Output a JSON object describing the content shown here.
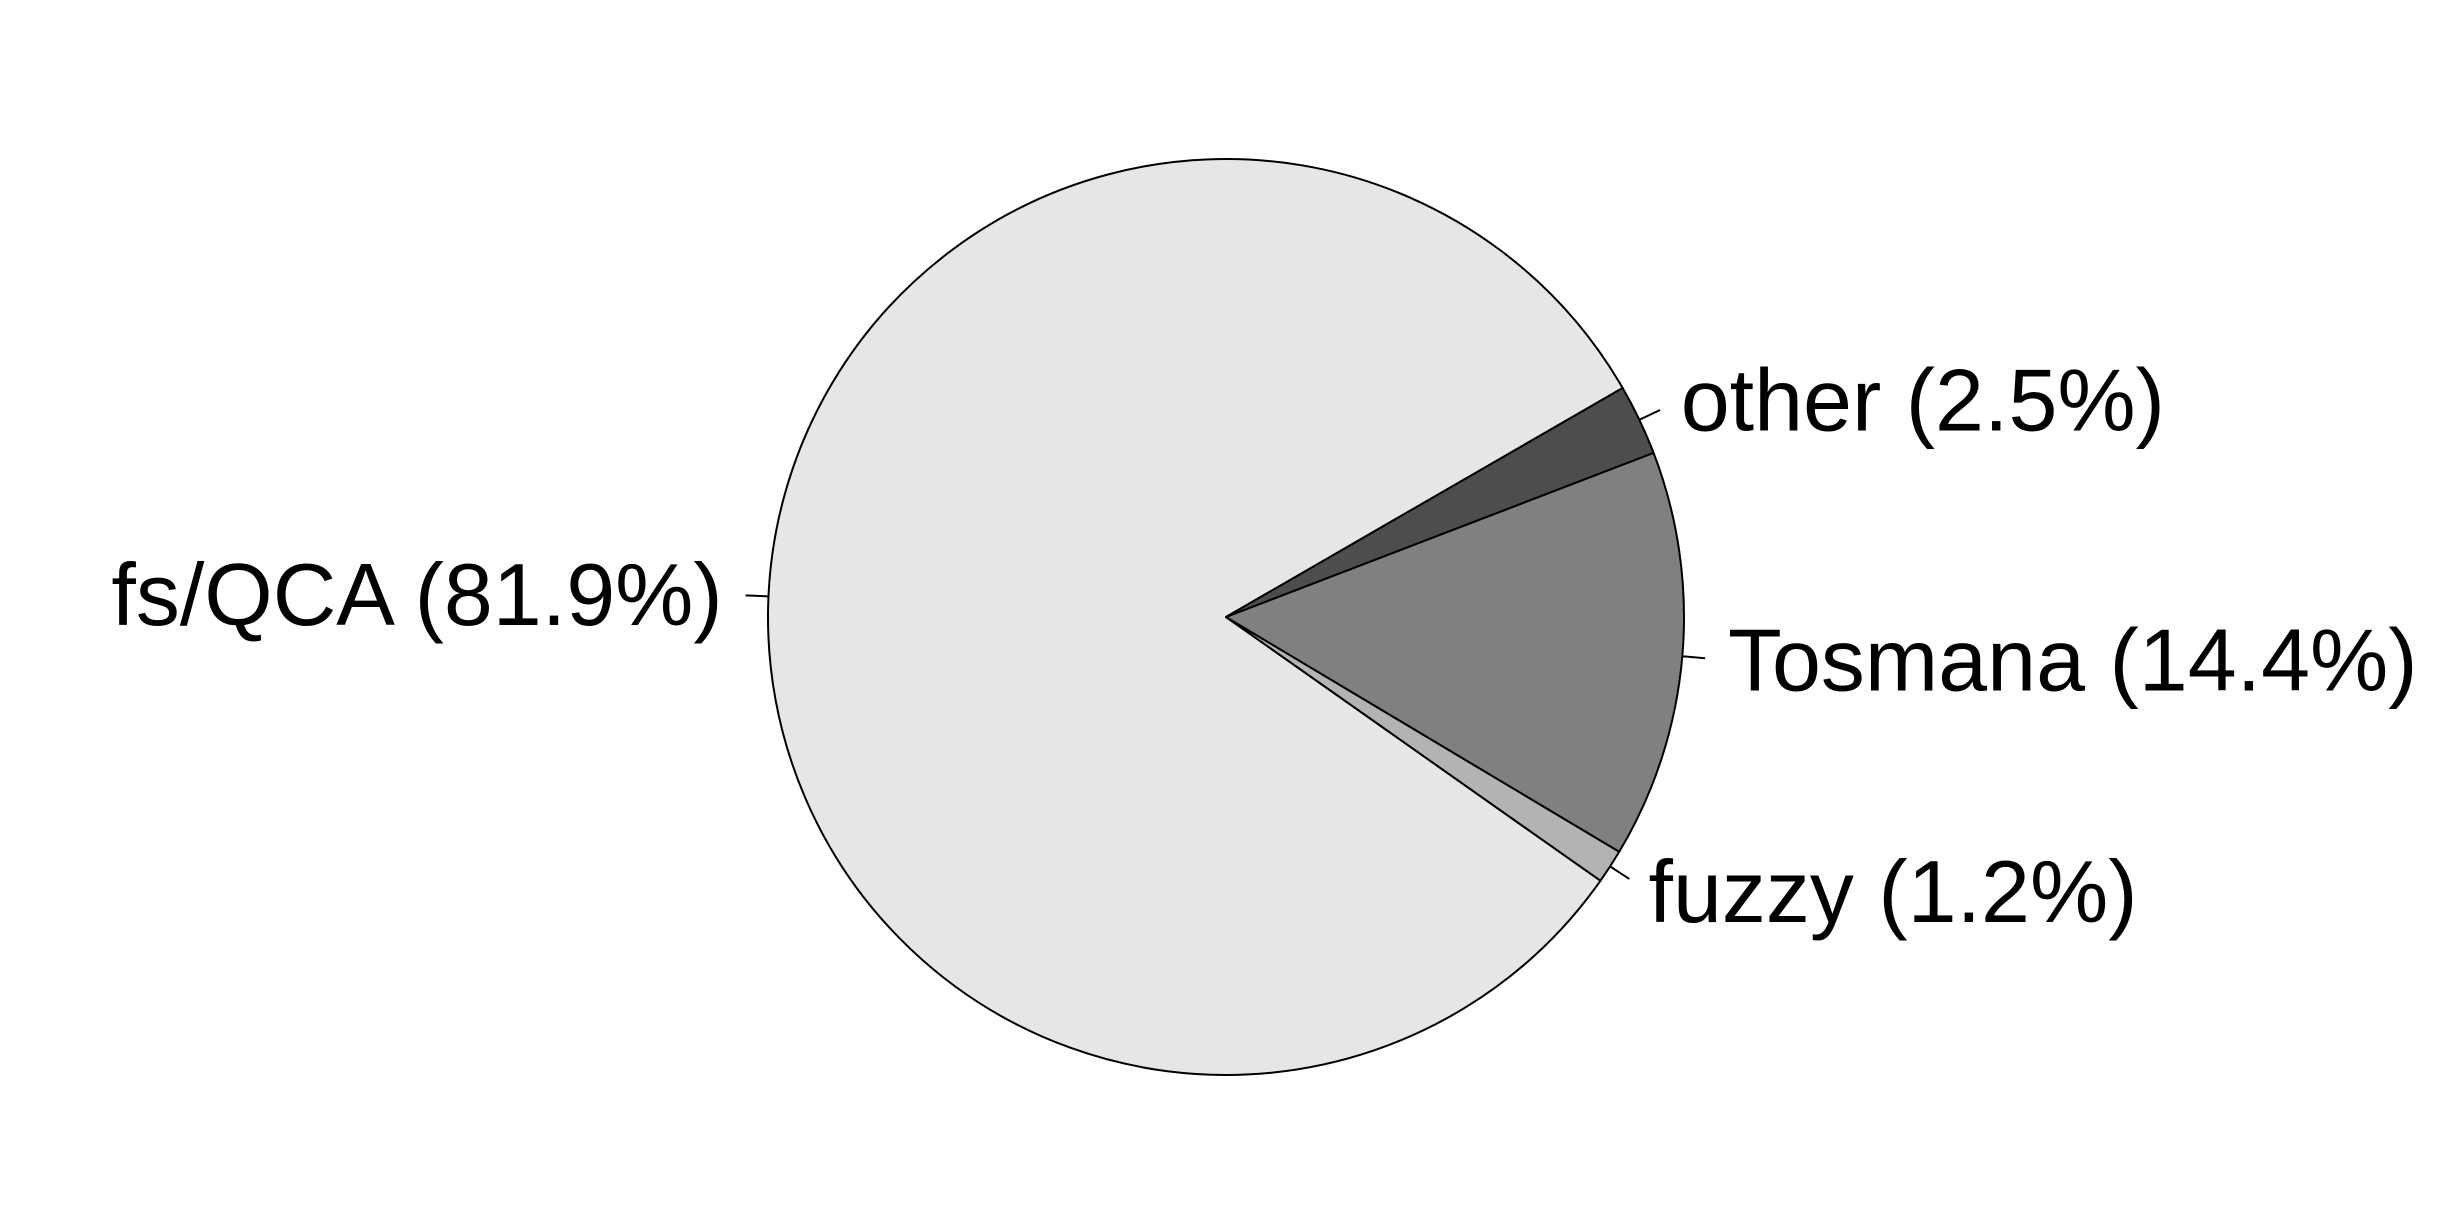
{
  "chart_data": {
    "type": "pie",
    "slices": [
      {
        "label": "fs/QCA (81.9%)",
        "value": 81.9,
        "color": "#e6e6e6"
      },
      {
        "label": "fuzzy (1.2%)",
        "value": 1.2,
        "color": "#b3b3b3"
      },
      {
        "label": "Tosmana (14.4%)",
        "value": 14.4,
        "color": "#808080"
      },
      {
        "label": "other (2.5%)",
        "value": 2.5,
        "color": "#4d4d4d"
      }
    ],
    "start_angle_deg": 30,
    "direction": "counterclockwise",
    "edge_color": "#000000",
    "legend": "none"
  }
}
